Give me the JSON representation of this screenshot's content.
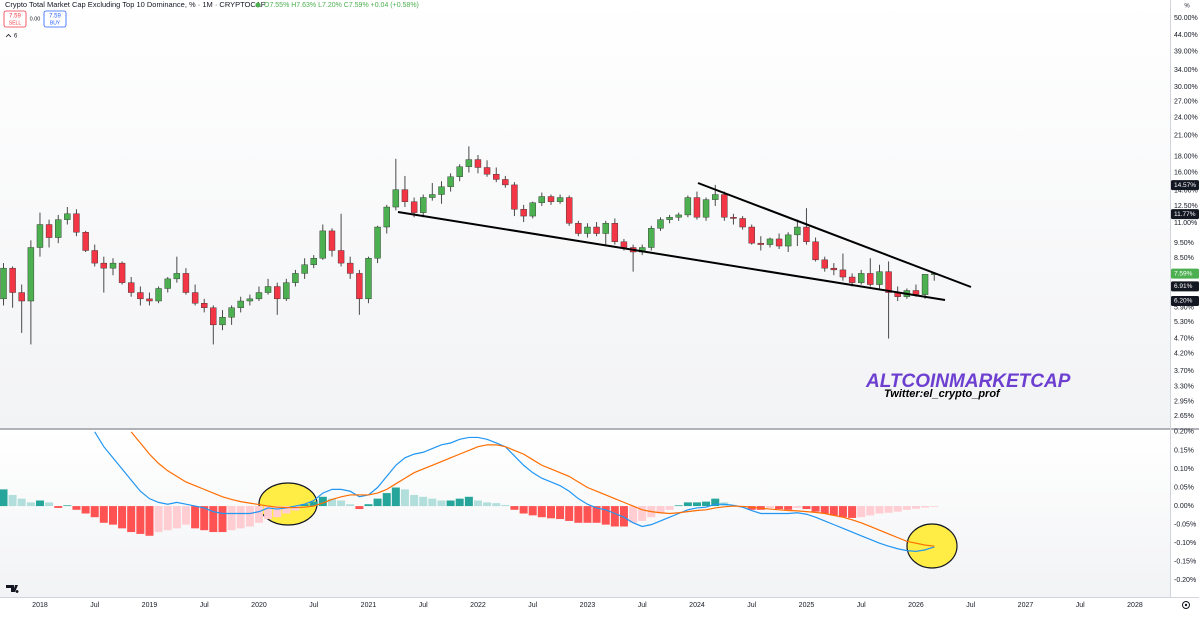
{
  "chart_data": {
    "type": "candlestick",
    "title": "Crypto Total Market Cap Excluding Top 10 Dominance, % · 1M · CRYPTOCAP",
    "ohlc_text": "O7.55% H7.63% L7.20% C7.59% +0.04 (+0.58%)",
    "sell_price": "7.59",
    "sell_label": "SELL",
    "spread": "0.00",
    "buy_price": "7.59",
    "buy_label": "BUY",
    "indicator_count": "6",
    "axis_unit": "%",
    "watermark": "ALTCOINMARKETCAP",
    "watermark_credit": "Twitter:el_crypto_prof",
    "log_scale": true,
    "grid": false,
    "up_color": "#4caf50",
    "down_color": "#f23645",
    "wick_color": "#4a4a4a",
    "xlim": [
      2017.635,
      2028.32
    ],
    "xticks": [
      2018,
      {
        "value": 2018.5,
        "label": "Jul"
      },
      2019,
      {
        "value": 2019.5,
        "label": "Jul"
      },
      2020,
      {
        "value": 2020.5,
        "label": "Jul"
      },
      2021,
      {
        "value": 2021.5,
        "label": "Jul"
      },
      2022,
      {
        "value": 2022.5,
        "label": "Jul"
      },
      2023,
      {
        "value": 2023.5,
        "label": "Jul"
      },
      2024,
      {
        "value": 2024.5,
        "label": "Jul"
      },
      2025,
      {
        "value": 2025.5,
        "label": "Jul"
      },
      2026,
      {
        "value": 2026.5,
        "label": "Jul"
      },
      2027,
      {
        "value": 2027.5,
        "label": "Jul"
      },
      2028
    ],
    "ylim": [
      2.43,
      57.1
    ],
    "yticks": [
      {
        "value": 50,
        "label": "50.00%"
      },
      {
        "value": 44,
        "label": "44.00%"
      },
      {
        "value": 39,
        "label": "39.00%"
      },
      {
        "value": 34,
        "label": "34.00%"
      },
      {
        "value": 30,
        "label": "30.00%"
      },
      {
        "value": 27,
        "label": "27.00%"
      },
      {
        "value": 24,
        "label": "24.00%"
      },
      {
        "value": 21,
        "label": "21.00%"
      },
      {
        "value": 18,
        "label": "18.00%"
      },
      {
        "value": 16,
        "label": "16.00%"
      },
      {
        "value": 14,
        "label": "14.00%"
      },
      {
        "value": 12.5,
        "label": "12.50%"
      },
      {
        "value": 11,
        "label": "11.00%"
      },
      {
        "value": 9.5,
        "label": "9.50%"
      },
      {
        "value": 8.5,
        "label": "8.50%"
      },
      {
        "value": 5.9,
        "label": "5.90%"
      },
      {
        "value": 5.3,
        "label": "5.30%"
      },
      {
        "value": 4.7,
        "label": "4.70%"
      },
      {
        "value": 4.2,
        "label": "4.20%"
      },
      {
        "value": 3.7,
        "label": "3.70%"
      },
      {
        "value": 3.3,
        "label": "3.30%"
      },
      {
        "value": 2.95,
        "label": "2.95%"
      },
      {
        "value": 2.65,
        "label": "2.65%"
      }
    ],
    "price_labels": [
      {
        "value": 14.57,
        "label": "14.57%",
        "color": "#131722"
      },
      {
        "value": 11.77,
        "label": "11.77%",
        "color": "#131722"
      },
      {
        "value": 7.59,
        "label": "7.59%",
        "color": "#4caf50"
      },
      {
        "value": 6.91,
        "label": "6.91%",
        "color": "#131722"
      },
      {
        "value": 6.2,
        "label": "6.20%",
        "color": "#131722"
      }
    ],
    "x": [
      2017.667,
      2017.75,
      2017.833,
      2017.917,
      2018,
      2018.083,
      2018.167,
      2018.25,
      2018.333,
      2018.417,
      2018.5,
      2018.583,
      2018.667,
      2018.75,
      2018.833,
      2018.917,
      2019,
      2019.083,
      2019.167,
      2019.25,
      2019.333,
      2019.417,
      2019.5,
      2019.583,
      2019.667,
      2019.75,
      2019.833,
      2019.917,
      2020,
      2020.083,
      2020.167,
      2020.25,
      2020.333,
      2020.417,
      2020.5,
      2020.583,
      2020.667,
      2020.75,
      2020.833,
      2020.917,
      2021,
      2021.083,
      2021.167,
      2021.25,
      2021.333,
      2021.417,
      2021.5,
      2021.583,
      2021.667,
      2021.75,
      2021.833,
      2021.917,
      2022,
      2022.083,
      2022.167,
      2022.25,
      2022.333,
      2022.417,
      2022.5,
      2022.583,
      2022.667,
      2022.75,
      2022.833,
      2022.917,
      2023,
      2023.083,
      2023.167,
      2023.25,
      2023.333,
      2023.417,
      2023.5,
      2023.583,
      2023.667,
      2023.75,
      2023.833,
      2023.917,
      2024,
      2024.083,
      2024.167,
      2024.25,
      2024.333,
      2024.417,
      2024.5,
      2024.583,
      2024.667,
      2024.75,
      2024.833,
      2024.917,
      2025,
      2025.083,
      2025.167,
      2025.25,
      2025.333,
      2025.417,
      2025.5,
      2025.583,
      2025.667,
      2025.75,
      2025.833,
      2025.917,
      2026,
      2026.083,
      2026.167
    ],
    "open": [
      6.3,
      7.9,
      6.6,
      6.2,
      9.2,
      10.9,
      9.9,
      11.3,
      11.8,
      10.3,
      9.0,
      8.2,
      7.9,
      8.2,
      7.1,
      6.6,
      6.3,
      6.2,
      6.8,
      7.3,
      7.6,
      6.6,
      6.1,
      5.9,
      5.2,
      5.5,
      5.9,
      6.2,
      6.3,
      6.6,
      6.9,
      6.3,
      7.1,
      7.6,
      8.1,
      8.5,
      10.4,
      9.0,
      8.2,
      7.6,
      6.3,
      8.5,
      10.7,
      12.4,
      14.1,
      12.9,
      11.9,
      13.3,
      13.6,
      14.4,
      15.5,
      16.7,
      17.6,
      16.6,
      15.8,
      15.2,
      14.6,
      12.2,
      11.6,
      12.8,
      13.4,
      12.9,
      13.3,
      11.0,
      10.2,
      10.7,
      10.2,
      11.0,
      9.6,
      9.2,
      8.9,
      9.2,
      10.6,
      11.3,
      11.5,
      11.7,
      13.3,
      11.5,
      13.1,
      13.6,
      11.5,
      11.4,
      10.7,
      9.5,
      9.4,
      9.8,
      9.3,
      10.1,
      10.7,
      9.6,
      8.4,
      7.9,
      7.8,
      7.4,
      7.1,
      7.6,
      7.0,
      7.7,
      6.6,
      6.4,
      6.7,
      6.5,
      7.55
    ],
    "high": [
      8.2,
      8.0,
      7.0,
      9.7,
      11.9,
      11.3,
      11.7,
      12.4,
      12.2,
      10.4,
      9.4,
      8.6,
      8.5,
      8.3,
      7.4,
      6.9,
      6.6,
      6.9,
      7.4,
      8.6,
      7.9,
      7.0,
      6.3,
      6.0,
      5.8,
      6.0,
      6.4,
      6.5,
      6.9,
      7.3,
      7.1,
      7.3,
      7.8,
      8.5,
      8.7,
      10.9,
      10.6,
      11.8,
      8.6,
      7.8,
      8.6,
      10.8,
      12.6,
      17.7,
      15.6,
      13.3,
      13.6,
      14.8,
      15.0,
      15.9,
      17.0,
      19.4,
      18.2,
      17.5,
      16.6,
      15.6,
      14.9,
      12.6,
      12.9,
      13.8,
      13.6,
      13.6,
      13.5,
      11.2,
      11.0,
      11.1,
      11.2,
      11.4,
      9.8,
      9.4,
      9.4,
      10.8,
      11.5,
      11.7,
      11.9,
      13.5,
      13.9,
      13.3,
      14.6,
      13.9,
      11.8,
      11.6,
      10.9,
      10.0,
      9.9,
      10.2,
      10.3,
      11.3,
      12.3,
      9.9,
      8.6,
      8.2,
      8.8,
      7.6,
      7.8,
      8.5,
      8.1,
      8.3,
      6.9,
      6.8,
      7.0,
      7.3,
      7.63
    ],
    "low": [
      6.0,
      5.9,
      4.9,
      4.5,
      8.6,
      9.2,
      9.5,
      10.9,
      10.0,
      8.9,
      8.0,
      6.6,
      7.5,
      7.0,
      6.4,
      6.0,
      6.0,
      6.1,
      6.6,
      7.1,
      6.5,
      6.0,
      5.7,
      4.5,
      5.0,
      5.2,
      5.7,
      6.0,
      6.2,
      6.5,
      5.6,
      6.2,
      6.9,
      7.3,
      7.9,
      8.4,
      8.6,
      8.0,
      7.3,
      5.6,
      6.1,
      8.2,
      10.2,
      12.1,
      12.4,
      11.5,
      11.5,
      13.0,
      12.7,
      13.9,
      15.0,
      16.0,
      15.9,
      15.5,
      14.9,
      14.3,
      11.6,
      11.1,
      11.4,
      12.5,
      12.6,
      12.7,
      10.8,
      10.0,
      9.9,
      10.0,
      9.4,
      9.4,
      9.0,
      7.7,
      8.7,
      9.0,
      10.4,
      11.0,
      11.2,
      11.5,
      11.3,
      11.2,
      12.5,
      11.2,
      10.9,
      10.5,
      9.4,
      9.0,
      9.2,
      9.1,
      8.9,
      9.3,
      9.4,
      8.3,
      7.7,
      7.5,
      7.2,
      6.9,
      7.0,
      6.9,
      6.8,
      4.7,
      6.2,
      6.3,
      6.4,
      6.3,
      7.2
    ],
    "close": [
      7.9,
      6.6,
      6.2,
      9.2,
      10.9,
      9.9,
      11.3,
      11.8,
      10.3,
      9.0,
      8.2,
      7.9,
      8.2,
      7.1,
      6.6,
      6.3,
      6.2,
      6.8,
      7.3,
      7.6,
      6.6,
      6.1,
      5.9,
      5.2,
      5.5,
      5.9,
      6.2,
      6.3,
      6.6,
      6.9,
      6.3,
      7.1,
      7.6,
      8.1,
      8.5,
      10.4,
      9.0,
      8.2,
      7.6,
      6.3,
      8.5,
      10.7,
      12.4,
      14.1,
      12.9,
      11.9,
      13.3,
      13.6,
      14.4,
      15.5,
      16.7,
      17.6,
      16.6,
      15.8,
      15.2,
      14.6,
      12.2,
      11.6,
      12.8,
      13.4,
      12.9,
      13.3,
      11.0,
      10.2,
      10.7,
      10.2,
      11.0,
      9.6,
      9.2,
      8.9,
      9.2,
      10.6,
      11.3,
      11.5,
      11.7,
      13.3,
      11.5,
      13.1,
      13.6,
      11.5,
      11.4,
      10.7,
      9.5,
      9.4,
      9.8,
      9.3,
      10.1,
      10.7,
      9.6,
      8.4,
      7.9,
      7.8,
      7.4,
      7.1,
      7.6,
      7.0,
      7.7,
      6.6,
      6.4,
      6.7,
      6.5,
      7.55,
      7.59
    ],
    "macd": {
      "ylim": [
        -0.245,
        0.205
      ],
      "yticks": [
        {
          "value": 0.2,
          "label": "0.20%"
        },
        {
          "value": 0.15,
          "label": "0.15%"
        },
        {
          "value": 0.1,
          "label": "0.10%"
        },
        {
          "value": 0.05,
          "label": "0.05%"
        },
        {
          "value": 0,
          "label": "0.00%"
        },
        {
          "value": -0.05,
          "label": "-0.05%"
        },
        {
          "value": -0.1,
          "label": "-0.10%"
        },
        {
          "value": -0.15,
          "label": "-0.15%"
        },
        {
          "value": -0.2,
          "label": "-0.20%"
        }
      ],
      "histogram_colors": {
        "rising_positive": "#26a69a",
        "falling_positive": "#b2dfdb",
        "falling_negative": "#ff5252",
        "rising_negative": "#ffcdd2"
      },
      "histogram": [
        0.045,
        0.03,
        0.02,
        0.01,
        0.015,
        0.01,
        -0.005,
        0.002,
        -0.01,
        -0.02,
        -0.03,
        -0.045,
        -0.05,
        -0.06,
        -0.07,
        -0.075,
        -0.08,
        -0.07,
        -0.065,
        -0.06,
        -0.05,
        -0.06,
        -0.065,
        -0.07,
        -0.07,
        -0.065,
        -0.06,
        -0.055,
        -0.045,
        -0.035,
        -0.03,
        -0.02,
        -0.012,
        0.005,
        0.012,
        0.025,
        0.02,
        0.015,
        0.005,
        -0.008,
        0.005,
        0.02,
        0.035,
        0.05,
        0.045,
        0.03,
        0.025,
        0.02,
        0.015,
        0.015,
        0.02,
        0.025,
        0.015,
        0.01,
        0.008,
        0.003,
        -0.01,
        -0.02,
        -0.025,
        -0.03,
        -0.033,
        -0.035,
        -0.04,
        -0.045,
        -0.045,
        -0.045,
        -0.05,
        -0.055,
        -0.055,
        -0.045,
        -0.04,
        -0.03,
        -0.02,
        -0.01,
        0.002,
        0.01,
        0.01,
        0.012,
        0.02,
        0.01,
        0.003,
        -0.003,
        -0.01,
        -0.01,
        -0.005,
        -0.008,
        -0.01,
        -0.005,
        -0.008,
        -0.015,
        -0.02,
        -0.025,
        -0.03,
        -0.032,
        -0.03,
        -0.025,
        -0.02,
        -0.018,
        -0.015,
        -0.01,
        -0.007,
        -0.004,
        -0.002
      ],
      "macd_line": {
        "color": "#2196f3",
        "values": [
          null,
          null,
          null,
          null,
          null,
          null,
          null,
          null,
          null,
          null,
          0.2,
          0.16,
          0.13,
          0.1,
          0.07,
          0.04,
          0.02,
          0.01,
          0.005,
          0.01,
          0.005,
          0,
          -0.005,
          -0.015,
          -0.02,
          -0.02,
          -0.02,
          -0.02,
          -0.015,
          -0.005,
          -0.008,
          -0.005,
          0,
          0.005,
          0.015,
          0.035,
          0.045,
          0.045,
          0.04,
          0.025,
          0.03,
          0.05,
          0.08,
          0.11,
          0.13,
          0.14,
          0.145,
          0.155,
          0.165,
          0.17,
          0.18,
          0.185,
          0.185,
          0.18,
          0.17,
          0.16,
          0.135,
          0.11,
          0.09,
          0.075,
          0.065,
          0.055,
          0.04,
          0.02,
          0.005,
          -0.005,
          -0.01,
          -0.02,
          -0.03,
          -0.045,
          -0.055,
          -0.05,
          -0.04,
          -0.03,
          -0.02,
          -0.01,
          -0.005,
          -0.003,
          0.005,
          0.005,
          0.002,
          -0.003,
          -0.012,
          -0.02,
          -0.02,
          -0.02,
          -0.02,
          -0.018,
          -0.022,
          -0.03,
          -0.04,
          -0.05,
          -0.06,
          -0.07,
          -0.08,
          -0.09,
          -0.1,
          -0.108,
          -0.115,
          -0.12,
          -0.122,
          -0.118,
          -0.11
        ]
      },
      "signal_line": {
        "color": "#ff6d00",
        "values": [
          null,
          null,
          null,
          null,
          null,
          null,
          null,
          null,
          null,
          null,
          null,
          null,
          null,
          null,
          0.2,
          0.17,
          0.14,
          0.115,
          0.095,
          0.08,
          0.065,
          0.055,
          0.045,
          0.035,
          0.025,
          0.018,
          0.012,
          0.008,
          0.004,
          0,
          -0.003,
          -0.004,
          -0.004,
          -0.003,
          0,
          0.008,
          0.018,
          0.025,
          0.03,
          0.03,
          0.03,
          0.035,
          0.045,
          0.06,
          0.075,
          0.09,
          0.1,
          0.11,
          0.12,
          0.13,
          0.14,
          0.15,
          0.16,
          0.165,
          0.165,
          0.16,
          0.15,
          0.14,
          0.125,
          0.11,
          0.1,
          0.09,
          0.08,
          0.065,
          0.05,
          0.04,
          0.03,
          0.02,
          0.01,
          0,
          -0.01,
          -0.015,
          -0.018,
          -0.02,
          -0.018,
          -0.015,
          -0.012,
          -0.01,
          -0.005,
          -0.002,
          0,
          -0.001,
          -0.003,
          -0.006,
          -0.008,
          -0.01,
          -0.012,
          -0.013,
          -0.015,
          -0.017,
          -0.02,
          -0.025,
          -0.03,
          -0.037,
          -0.045,
          -0.055,
          -0.065,
          -0.075,
          -0.085,
          -0.095,
          -0.1,
          -0.105,
          -0.108
        ]
      }
    }
  }
}
